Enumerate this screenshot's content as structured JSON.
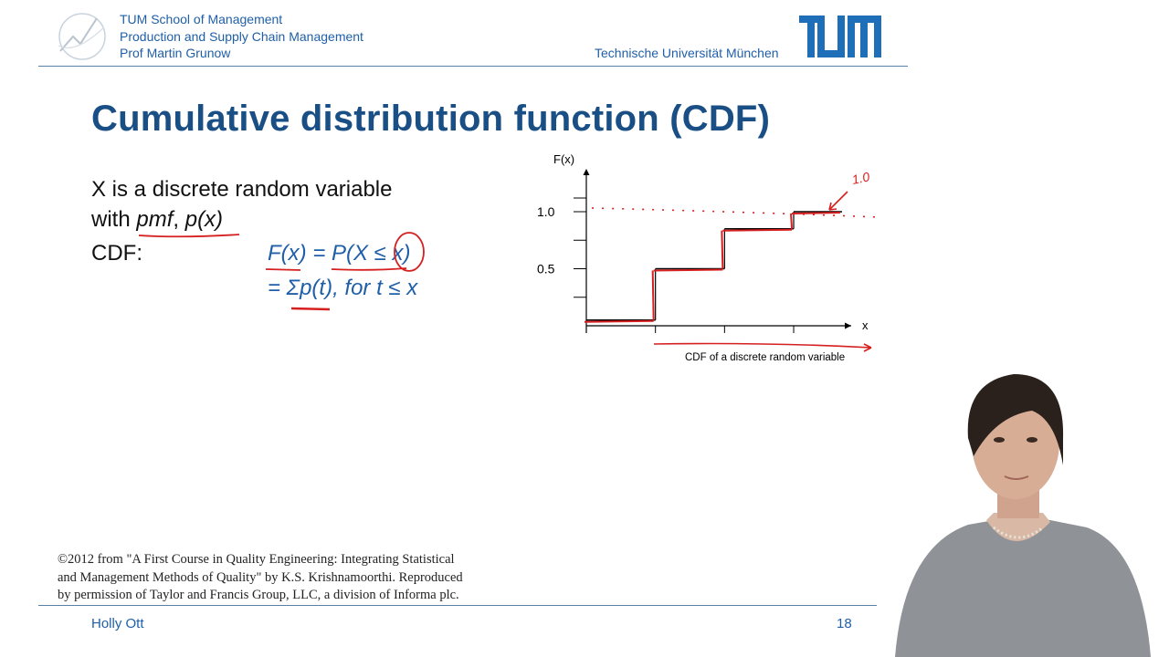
{
  "header": {
    "lines": [
      "TUM School of Management",
      "Production and Supply Chain Management",
      "Prof Martin Grunow"
    ],
    "university": "Technische Universität München",
    "brand_color": "#1f5fa8"
  },
  "slide": {
    "title": "Cumulative distribution function (CDF)",
    "title_color": "#1a4f86",
    "body": {
      "line1": "X is a discrete random variable",
      "line2_prefix": "with ",
      "line2_pmf": "pmf",
      "line2_sep": ", ",
      "line2_px": "p(x)",
      "line3": "CDF:"
    },
    "handwriting": {
      "formula_line1": "F(x) = P(X ≤ x)",
      "formula_line2": "= Σp(t), for t ≤ x",
      "chart_note": "1.0",
      "ink_blue": "#1f5fa8",
      "ink_red": "#d61f1f"
    }
  },
  "chart_data": {
    "type": "line",
    "step": true,
    "ylabel": "F(x)",
    "xlabel": "x",
    "caption": "CDF of a discrete random variable",
    "yticks": [
      {
        "value": 1.0,
        "label": "1.0"
      },
      {
        "value": 0.5,
        "label": "0.5"
      }
    ],
    "ylim": [
      0,
      1.2
    ],
    "xticks_count": 3,
    "steps": [
      {
        "x0": 0,
        "x1": 1,
        "y": 0.05
      },
      {
        "x0": 1,
        "x1": 2,
        "y": 0.5
      },
      {
        "x0": 2,
        "x1": 3,
        "y": 0.85
      },
      {
        "x0": 3,
        "x1": 3.7,
        "y": 1.0
      }
    ],
    "xlim": [
      0,
      3.7
    ]
  },
  "citation": {
    "lines": [
      "©2012 from \"A First Course in Quality Engineering: Integrating Statistical",
      "and Management Methods of Quality\" by K.S. Krishnamoorthi. Reproduced",
      "by permission of Taylor and Francis Group, LLC, a division of Informa plc."
    ]
  },
  "footer": {
    "author": "Holly Ott",
    "page_number": "18"
  }
}
